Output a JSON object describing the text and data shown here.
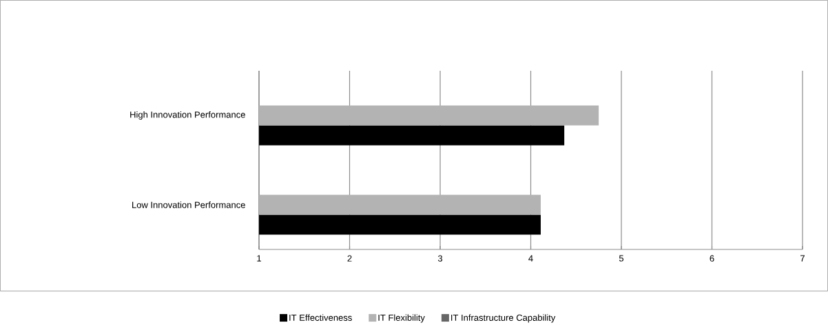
{
  "chart_data": {
    "type": "bar",
    "orientation": "horizontal",
    "categories": [
      "High Innovation Performance",
      "Low Innovation Performance"
    ],
    "series": [
      {
        "name": "IT Effectiveness",
        "color": "#000000",
        "values": [
          4.37,
          4.11
        ]
      },
      {
        "name": "IT Flexibility",
        "color": "#b3b3b3",
        "values": [
          4.75,
          4.11
        ]
      },
      {
        "name": "IT Infrastructure Capability",
        "color": "#666666",
        "values": [
          null,
          null
        ]
      }
    ],
    "xlim": [
      1,
      7
    ],
    "xticks": [
      1,
      2,
      3,
      4,
      5,
      6,
      7
    ],
    "grid": "x",
    "legend": "bottom"
  }
}
